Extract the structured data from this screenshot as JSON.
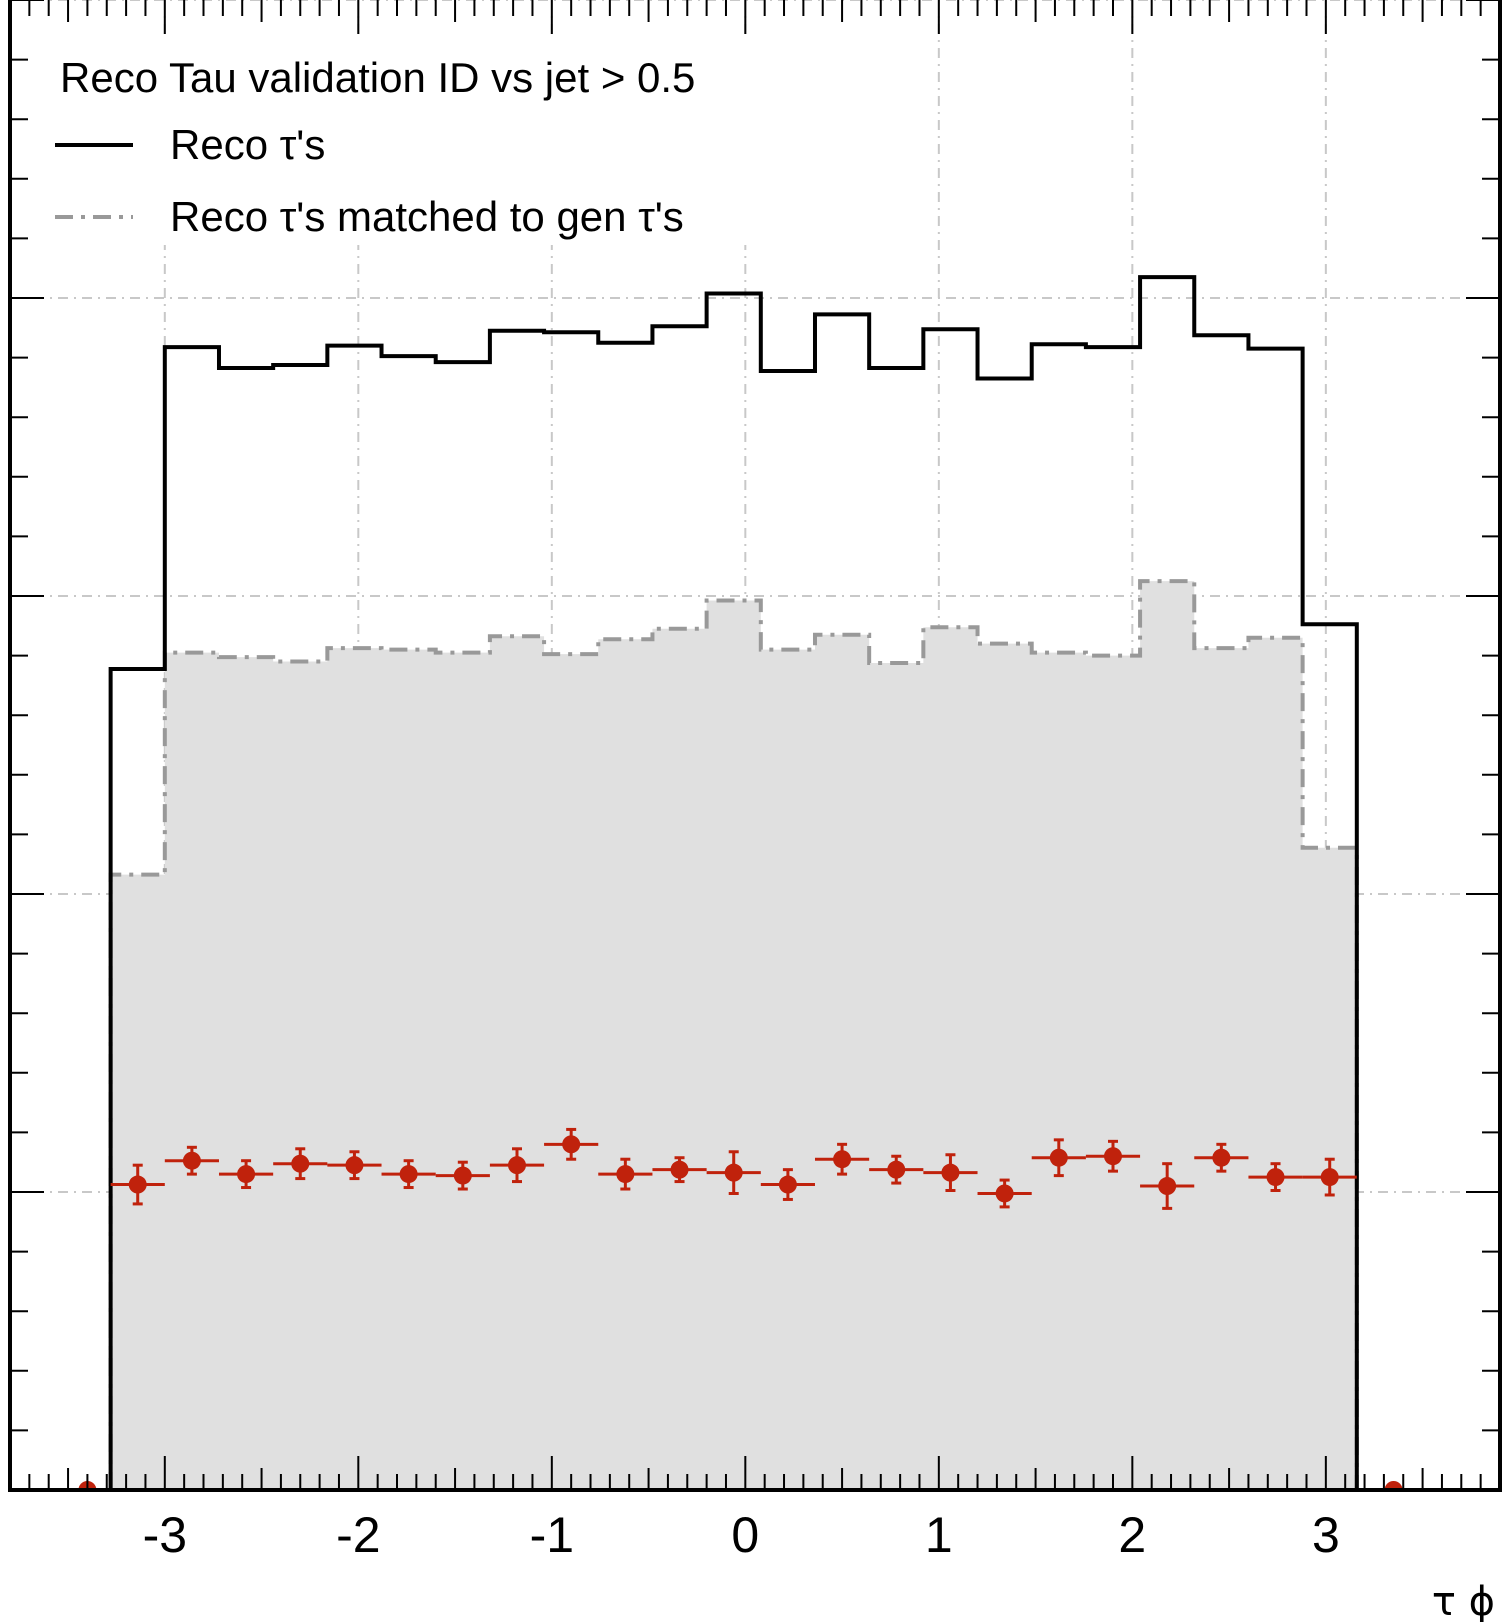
{
  "chart_data": {
    "type": "histogram",
    "legend": {
      "header": "Reco Tau validation ID vs jet > 0.5",
      "entries": [
        "Reco τ's",
        "Reco τ's matched to gen τ's"
      ],
      "placement": "top-left"
    },
    "xlabel": "τ ϕ",
    "xlim": [
      -3.8,
      3.9
    ],
    "ylim": [
      0,
      1.0
    ],
    "grid": true,
    "x_ticks": [
      -3,
      -2,
      -1,
      0,
      1,
      2,
      3
    ],
    "x_tick_labels": [
      "-3",
      "-2",
      "-1",
      "0",
      "1",
      "2",
      "3"
    ],
    "bin_edges": [
      -3.28,
      -3.0,
      -2.72,
      -2.44,
      -2.16,
      -1.88,
      -1.6,
      -1.32,
      -1.04,
      -0.76,
      -0.48,
      -0.2,
      0.08,
      0.36,
      0.64,
      0.92,
      1.2,
      1.48,
      1.76,
      2.04,
      2.32,
      2.6,
      2.88,
      3.16
    ],
    "series": [
      {
        "name": "Reco τ's",
        "style": "solid-line",
        "color": "#000000",
        "values": [
          0.551,
          0.767,
          0.753,
          0.755,
          0.768,
          0.761,
          0.757,
          0.778,
          0.777,
          0.77,
          0.781,
          0.803,
          0.751,
          0.789,
          0.753,
          0.779,
          0.746,
          0.769,
          0.767,
          0.814,
          0.775,
          0.766,
          0.581
        ]
      },
      {
        "name": "Reco τ's matched to gen τ's",
        "style": "dash-dot-filled",
        "color": "#999999",
        "fill": "#e0e0e0",
        "values": [
          0.413,
          0.562,
          0.559,
          0.556,
          0.565,
          0.564,
          0.562,
          0.573,
          0.561,
          0.571,
          0.578,
          0.597,
          0.564,
          0.574,
          0.555,
          0.579,
          0.568,
          0.562,
          0.56,
          0.61,
          0.565,
          0.572,
          0.431
        ]
      },
      {
        "name": "",
        "style": "points-with-errors",
        "color": "#c0220c",
        "values": [
          0.205,
          0.221,
          0.212,
          0.219,
          0.218,
          0.212,
          0.211,
          0.218,
          0.232,
          0.212,
          0.215,
          0.213,
          0.205,
          0.222,
          0.215,
          0.213,
          0.199,
          0.223,
          0.224,
          0.204,
          0.223,
          0.21,
          0.21
        ],
        "errors": [
          0.013,
          0.009,
          0.009,
          0.01,
          0.009,
          0.009,
          0.009,
          0.011,
          0.01,
          0.01,
          0.008,
          0.014,
          0.01,
          0.01,
          0.009,
          0.012,
          0.009,
          0.012,
          0.01,
          0.015,
          0.009,
          0.009,
          0.012
        ],
        "outside_points_x": [
          -3.4,
          3.35
        ],
        "outside_points_y": [
          0.0,
          0.0
        ]
      }
    ]
  }
}
